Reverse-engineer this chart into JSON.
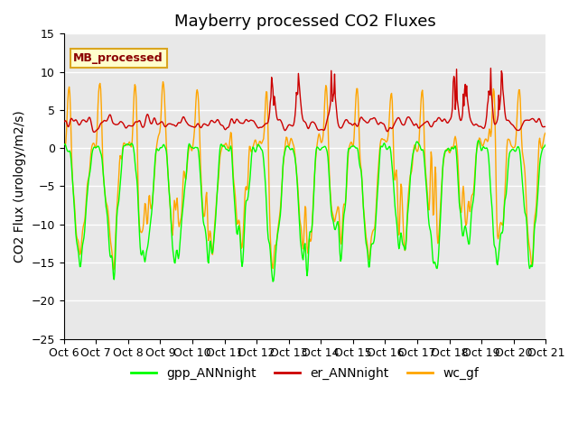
{
  "title": "Mayberry processed CO2 Fluxes",
  "ylabel": "CO2 Flux (urology/m2/s)",
  "ylim": [
    -25,
    15
  ],
  "yticks": [
    -25,
    -20,
    -15,
    -10,
    -5,
    0,
    5,
    10,
    15
  ],
  "xtick_labels": [
    "Oct 6",
    "Oct 7",
    "Oct 8",
    "Oct 9",
    "Oct 10",
    "Oct 11",
    "Oct 12",
    "Oct 13",
    "Oct 14",
    "Oct 15",
    "Oct 16",
    "Oct 17",
    "Oct 18",
    "Oct 19",
    "Oct 20",
    "Oct 21"
  ],
  "colors": {
    "gpp": "#00FF00",
    "er": "#CC0000",
    "wc": "#FFA500"
  },
  "legend_label": "MB_processed",
  "legend_text_color": "#8B0000",
  "legend_bg": "#FFFFCC",
  "legend_border": "#DAA520",
  "bg_color": "#E8E8E8",
  "line_width": 1.0,
  "title_fontsize": 13,
  "label_fontsize": 10,
  "tick_fontsize": 9
}
